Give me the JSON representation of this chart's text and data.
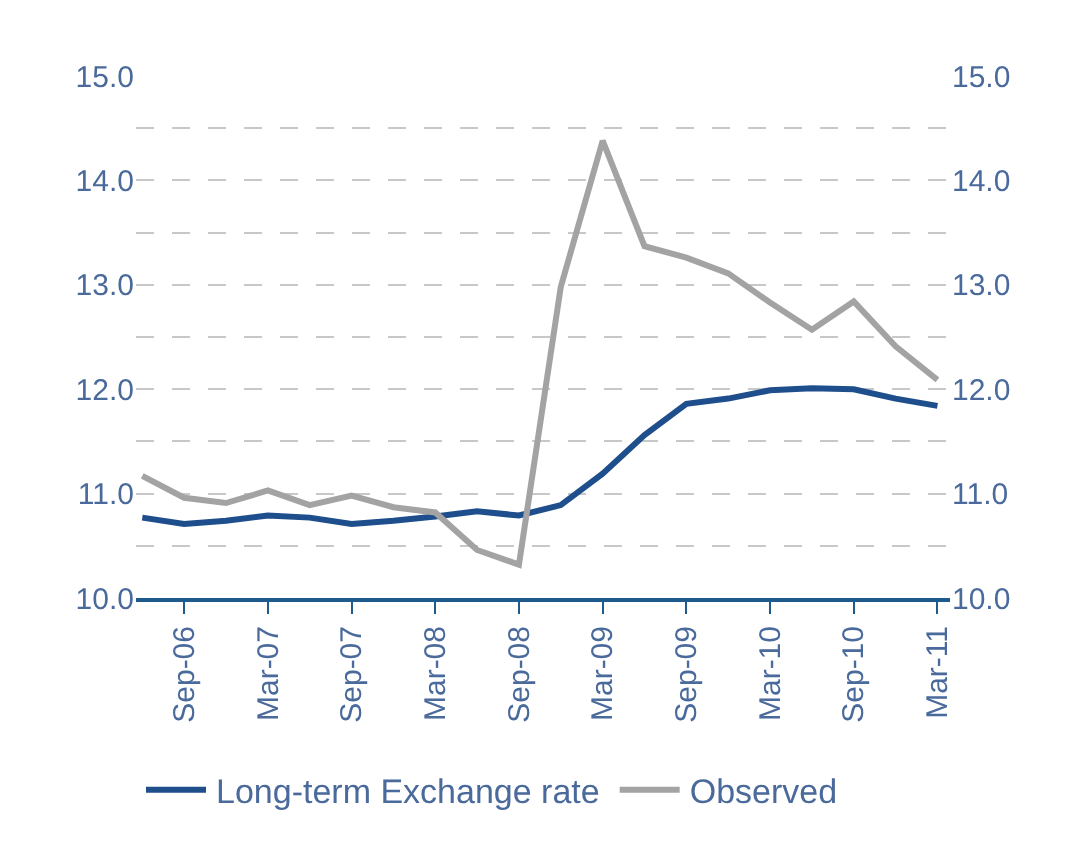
{
  "chart_data": {
    "type": "line",
    "categories": [
      null,
      "Sep-06",
      null,
      "Mar-07",
      null,
      "Sep-07",
      null,
      "Mar-08",
      null,
      "Sep-08",
      null,
      "Mar-09",
      null,
      "Sep-09",
      null,
      "Mar-10",
      null,
      "Sep-10",
      null,
      "Mar-11"
    ],
    "series": [
      {
        "name": "Long-term Exchange rate",
        "color": "#1f4e8c",
        "values": [
          10.77,
          10.71,
          10.74,
          10.79,
          10.77,
          10.71,
          10.74,
          10.78,
          10.83,
          10.79,
          10.89,
          11.19,
          11.56,
          11.86,
          11.91,
          11.99,
          12.01,
          12.0,
          11.91,
          11.84
        ]
      },
      {
        "name": "Observed",
        "color": "#a3a3a3",
        "values": [
          11.17,
          10.96,
          10.91,
          11.03,
          10.89,
          10.98,
          10.87,
          10.82,
          10.46,
          10.32,
          12.98,
          14.38,
          13.37,
          13.26,
          13.11,
          12.83,
          12.57,
          12.84,
          12.41,
          12.09
        ]
      }
    ],
    "ylim": [
      10,
      15
    ],
    "yticks": [
      {
        "value": 10,
        "label": "10.0"
      },
      {
        "value": 10.5,
        "label": null
      },
      {
        "value": 11,
        "label": "11.0"
      },
      {
        "value": 11.5,
        "label": null
      },
      {
        "value": 12,
        "label": "12.0"
      },
      {
        "value": 12.5,
        "label": null
      },
      {
        "value": 13,
        "label": "13.0"
      },
      {
        "value": 13.5,
        "label": null
      },
      {
        "value": 14,
        "label": "14.0"
      },
      {
        "value": 14.5,
        "label": null
      },
      {
        "value": 15,
        "label": "15.0"
      }
    ],
    "y2lim": [
      10,
      15
    ],
    "y2ticks": [
      {
        "value": 10,
        "label": "10.0"
      },
      {
        "value": 11,
        "label": "11.0"
      },
      {
        "value": 12,
        "label": "12.0"
      },
      {
        "value": 13,
        "label": "13.0"
      },
      {
        "value": 14,
        "label": "14.0"
      },
      {
        "value": 15,
        "label": "15.0"
      }
    ],
    "grid": "y",
    "legend": "bottom",
    "marker": "none",
    "line_style": "solid"
  }
}
